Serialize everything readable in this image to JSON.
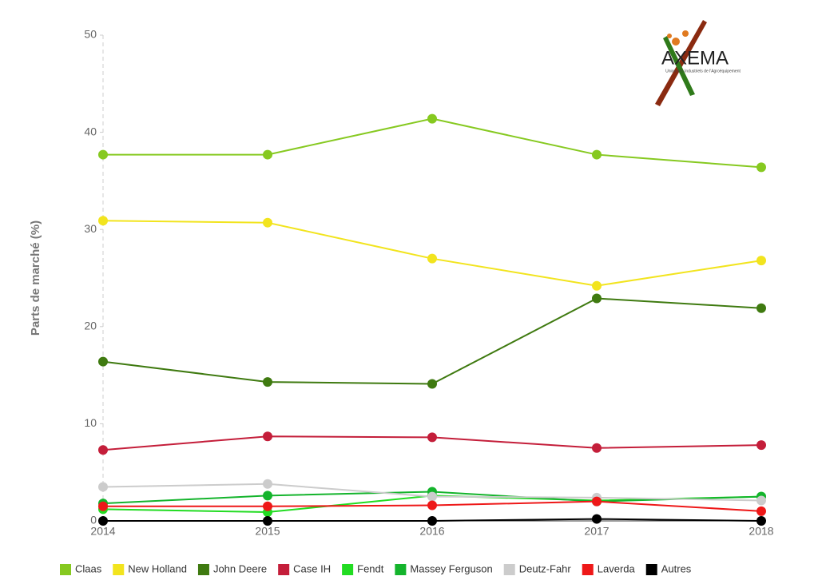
{
  "chart_data": {
    "type": "line",
    "y_label": "Parts de marché (%)",
    "categories": [
      "2014",
      "2015",
      "2016",
      "2017",
      "2018"
    ],
    "ylim": [
      0,
      50
    ],
    "yticks": [
      0,
      10,
      20,
      30,
      40,
      50
    ],
    "grid": false,
    "legend": "bottom",
    "series": [
      {
        "name": "Claas",
        "color": "#86c920",
        "values": [
          37.7,
          37.7,
          41.4,
          37.7,
          36.4
        ]
      },
      {
        "name": "New Holland",
        "color": "#f2e41e",
        "values": [
          30.9,
          30.7,
          27.0,
          24.2,
          26.8
        ]
      },
      {
        "name": "John Deere",
        "color": "#3f7a10",
        "values": [
          16.4,
          14.3,
          14.1,
          22.9,
          21.9
        ]
      },
      {
        "name": "Case IH",
        "color": "#c41e3a",
        "values": [
          7.3,
          8.7,
          8.6,
          7.5,
          7.8
        ]
      },
      {
        "name": "Fendt",
        "color": "#22dc22",
        "values": [
          1.2,
          0.9,
          2.6,
          2.1,
          2.5
        ]
      },
      {
        "name": "Massey Ferguson",
        "color": "#14b42c",
        "values": [
          1.8,
          2.6,
          3.0,
          2.0,
          2.5
        ]
      },
      {
        "name": "Deutz-Fahr",
        "color": "#cccccc",
        "values": [
          3.5,
          3.8,
          2.5,
          2.4,
          2.1
        ]
      },
      {
        "name": "Laverda",
        "color": "#ee1818",
        "values": [
          1.5,
          1.5,
          1.6,
          2.0,
          1.0
        ]
      },
      {
        "name": "Autres",
        "color": "#000000",
        "values": [
          0,
          0,
          0,
          0.2,
          0
        ]
      }
    ]
  },
  "logo": {
    "text": "AXEMA",
    "tagline": "Union des Industriels de l'Agroéquipement"
  }
}
